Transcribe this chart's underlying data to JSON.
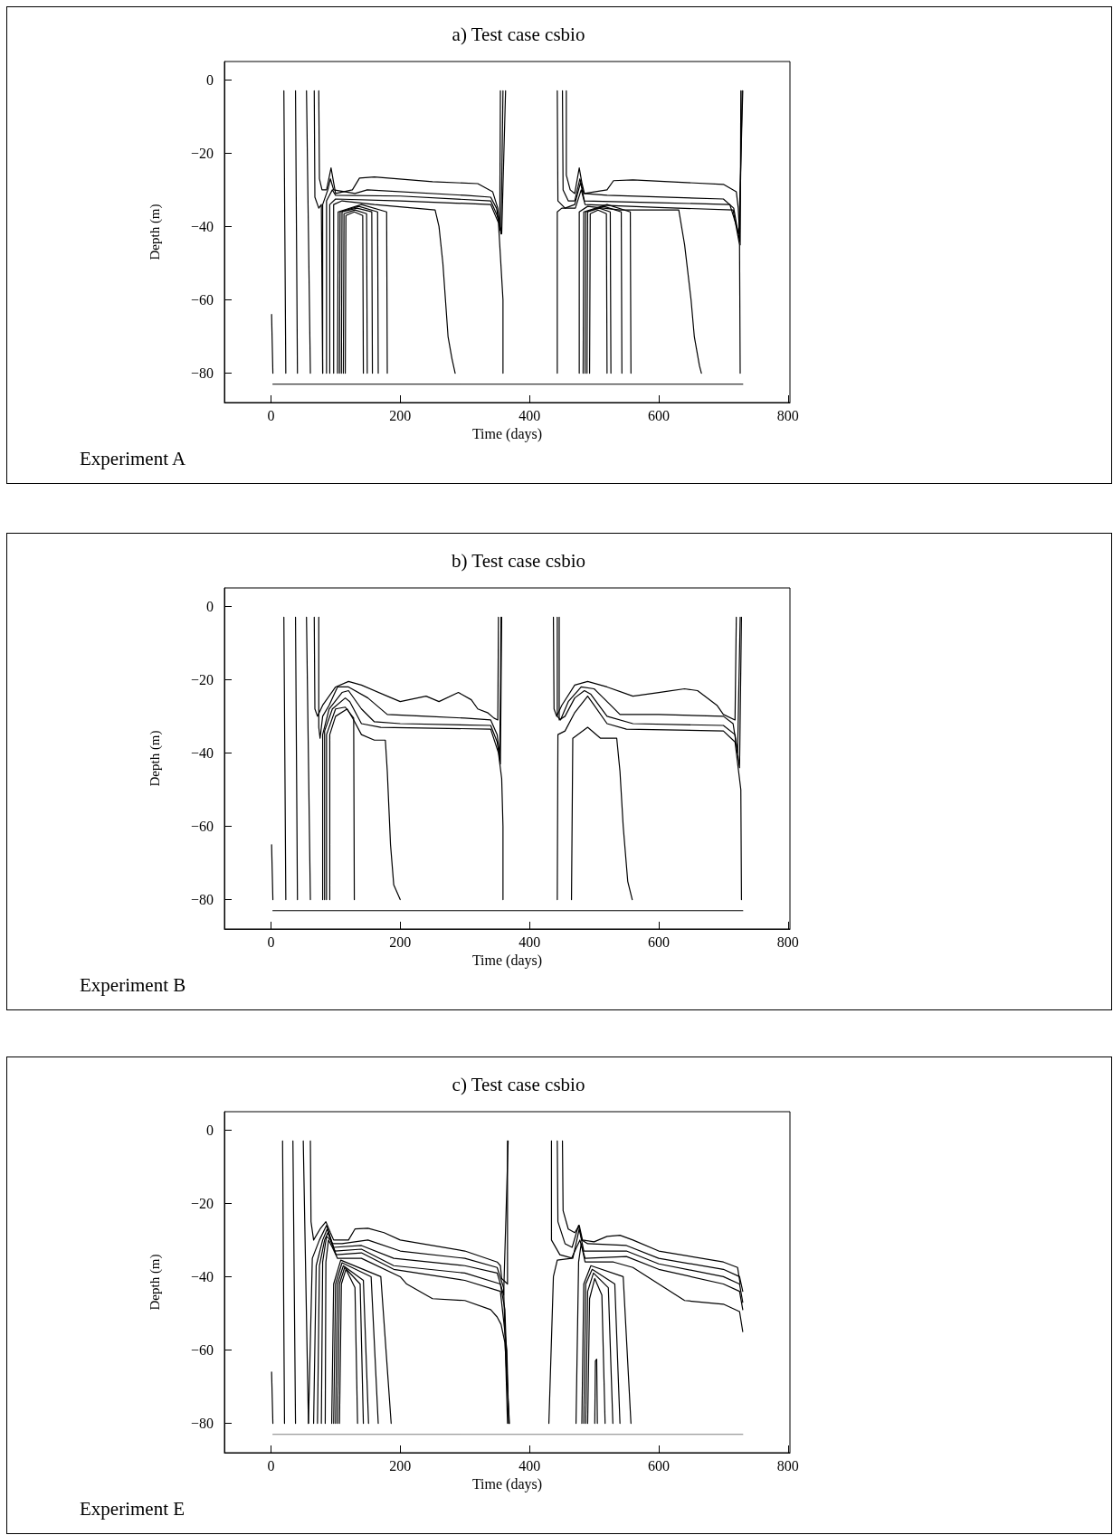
{
  "chart_data": [
    {
      "type": "line",
      "title": "a) Test case csbio",
      "xlabel": "Time (days)",
      "ylabel": "Depth (m)",
      "annotations": [
        "Experiment A"
      ],
      "xlim": [
        -72,
        803
      ],
      "ylim": [
        -88,
        5
      ],
      "xticks": [
        0,
        200,
        400,
        600,
        800
      ],
      "yticks": [
        0,
        -20,
        -40,
        -60,
        -80
      ],
      "grid": false,
      "marker": "none",
      "line_style": "solid",
      "series": [
        {
          "color": "#000000",
          "x": [
            1,
            3
          ],
          "values": [
            -64,
            -80
          ]
        },
        {
          "color": "#000000",
          "x": [
            20,
            23
          ],
          "values": [
            -3,
            -80
          ]
        },
        {
          "color": "#000000",
          "x": [
            38,
            41
          ],
          "values": [
            -3,
            -80
          ]
        },
        {
          "color": "#000000",
          "x": [
            55,
            61
          ],
          "values": [
            -3,
            -80
          ]
        },
        {
          "color": "#000000",
          "x": [
            67,
            68,
            74,
            78,
            80
          ],
          "values": [
            -3,
            -32,
            -35,
            -34,
            -80
          ]
        },
        {
          "color": "#000000",
          "x": [
            74,
            75,
            79,
            86,
            93,
            97,
            100,
            126,
            137,
            160,
            250,
            320,
            343,
            351,
            354,
            355
          ],
          "values": [
            -3,
            -27,
            -30,
            -30,
            -24,
            -28,
            -31,
            -30,
            -26.8,
            -26.5,
            -27.8,
            -28.3,
            -30.5,
            -35,
            -41,
            -3
          ]
        },
        {
          "color": "#000000",
          "x": [
            80,
            80,
            88,
            92,
            97,
            130,
            149,
            300,
            340,
            349,
            356,
            359
          ],
          "values": [
            -80,
            -34,
            -30,
            -27,
            -30,
            -31,
            -30,
            -31.5,
            -32,
            -35,
            -42,
            -3
          ]
        },
        {
          "color": "#000000",
          "x": [
            86,
            86,
            95,
            100,
            200,
            340,
            350,
            357,
            363
          ],
          "values": [
            -80,
            -33,
            -30,
            -31.5,
            -31.7,
            -33,
            -37,
            -42,
            -3
          ]
        },
        {
          "color": "#000000",
          "x": [
            91,
            91,
            100,
            200,
            340,
            352,
            359,
            359
          ],
          "values": [
            -80,
            -34,
            -32.5,
            -33,
            -34,
            -39,
            -60,
            -80
          ]
        },
        {
          "color": "#000000",
          "x": [
            97,
            97,
            110,
            160,
            254,
            260,
            266,
            270,
            274,
            280,
            285
          ],
          "values": [
            -80,
            -34,
            -33,
            -34,
            -35.5,
            -40,
            -50,
            -60,
            -70,
            -76,
            -80
          ]
        },
        {
          "color": "#000000",
          "x": [
            103,
            104,
            140,
            179,
            180
          ],
          "values": [
            -80,
            -36,
            -34,
            -36,
            -80
          ]
        },
        {
          "color": "#000000",
          "x": [
            106,
            107,
            136,
            165,
            166
          ],
          "values": [
            -80,
            -36,
            -34.5,
            -36,
            -80
          ]
        },
        {
          "color": "#000000",
          "x": [
            109,
            110,
            133,
            156,
            157
          ],
          "values": [
            -80,
            -36,
            -35,
            -36,
            -80
          ]
        },
        {
          "color": "#000000",
          "x": [
            112,
            113,
            130,
            148,
            149
          ],
          "values": [
            -80,
            -36.5,
            -35.5,
            -36.5,
            -80
          ]
        },
        {
          "color": "#000000",
          "x": [
            115,
            116,
            129,
            142,
            143
          ],
          "values": [
            -80,
            -37,
            -36,
            -37,
            -80
          ]
        },
        {
          "color": "#000000",
          "x": [
            457,
            457,
            463,
            470,
            477,
            481,
            485,
            520,
            530,
            560,
            700,
            720,
            723,
            726,
            727
          ],
          "values": [
            -3,
            -26,
            -30,
            -31,
            -24,
            -28,
            -31,
            -30,
            -27.5,
            -27.3,
            -28.5,
            -30.5,
            -35,
            -45,
            -3
          ]
        },
        {
          "color": "#000000",
          "x": [
            451,
            452,
            460,
            470,
            478,
            484,
            520,
            700,
            716,
            725,
            729
          ],
          "values": [
            -3,
            -30,
            -33,
            -33,
            -27,
            -31,
            -31.5,
            -32.5,
            -35,
            -44,
            -3
          ]
        },
        {
          "color": "#000000",
          "x": [
            443,
            444,
            455,
            470,
            479,
            485,
            600,
            710,
            724,
            730
          ],
          "values": [
            -3,
            -33,
            -35,
            -34,
            -28,
            -33,
            -33.5,
            -34,
            -42,
            -3
          ]
        },
        {
          "color": "#000000",
          "x": [
            443,
            443,
            450,
            471,
            480,
            486,
            600,
            715,
            725,
            726
          ],
          "values": [
            -80,
            -36,
            -35,
            -35,
            -30,
            -34,
            -34.8,
            -35.5,
            -45,
            -80
          ]
        },
        {
          "color": "#000000",
          "x": [
            477,
            477,
            490,
            540,
            631,
            640,
            650,
            655,
            663,
            666
          ],
          "values": [
            -80,
            -36,
            -34.5,
            -35.5,
            -35.5,
            -45,
            -60,
            -70,
            -78,
            -80
          ]
        },
        {
          "color": "#000000",
          "x": [
            483,
            484,
            520,
            556,
            557
          ],
          "values": [
            -80,
            -36,
            -34,
            -36,
            -80
          ]
        },
        {
          "color": "#000000",
          "x": [
            486,
            487,
            515,
            542,
            543
          ],
          "values": [
            -80,
            -36,
            -34.5,
            -36,
            -80
          ]
        },
        {
          "color": "#000000",
          "x": [
            489,
            490,
            508,
            525,
            526
          ],
          "values": [
            -80,
            -36,
            -35,
            -36,
            -80
          ]
        },
        {
          "color": "#000000",
          "x": [
            493,
            494,
            506,
            519,
            520
          ],
          "values": [
            -80,
            -36.5,
            -35.5,
            -36.5,
            -80
          ]
        },
        {
          "color": "#000000",
          "x": [
            3,
            730
          ],
          "values": [
            -83,
            -83
          ]
        }
      ]
    },
    {
      "type": "line",
      "title": "b) Test case csbio",
      "xlabel": "Time (days)",
      "ylabel": "Depth (m)",
      "annotations": [
        "Experiment B"
      ],
      "xlim": [
        -72,
        803
      ],
      "ylim": [
        -88,
        5
      ],
      "xticks": [
        0,
        200,
        400,
        600,
        800
      ],
      "yticks": [
        0,
        -20,
        -40,
        -60,
        -80
      ],
      "grid": false,
      "marker": "none",
      "line_style": "solid",
      "series": [
        {
          "color": "#000000",
          "x": [
            1,
            3
          ],
          "values": [
            -65,
            -80
          ]
        },
        {
          "color": "#000000",
          "x": [
            20,
            23
          ],
          "values": [
            -3,
            -80
          ]
        },
        {
          "color": "#000000",
          "x": [
            38,
            41
          ],
          "values": [
            -3,
            -80
          ]
        },
        {
          "color": "#000000",
          "x": [
            55,
            61
          ],
          "values": [
            -3,
            -80
          ]
        },
        {
          "color": "#000000",
          "x": [
            67,
            68,
            72,
            80,
            100,
            120,
            140,
            180,
            200,
            240,
            260,
            290,
            310,
            320,
            335,
            345,
            351,
            352
          ],
          "values": [
            -3,
            -28,
            -30,
            -27,
            -22,
            -20.5,
            -21.5,
            -24.5,
            -26,
            -24.5,
            -26,
            -23.5,
            -25.5,
            -28,
            -29,
            -30.5,
            -31,
            -3
          ]
        },
        {
          "color": "#000000",
          "x": [
            74,
            74,
            76,
            80,
            90,
            103,
            120,
            150,
            180,
            240,
            300,
            340,
            350,
            354,
            356
          ],
          "values": [
            -3,
            -33,
            -36,
            -30,
            -27,
            -22,
            -22,
            -25,
            -29.5,
            -30,
            -30.5,
            -31,
            -35,
            -41,
            -3
          ]
        },
        {
          "color": "#000000",
          "x": [
            80,
            80,
            90,
            110,
            120,
            140,
            160,
            200,
            340,
            350,
            355,
            357
          ],
          "values": [
            -80,
            -35,
            -28,
            -23.5,
            -23,
            -28,
            -31.5,
            -32,
            -32.5,
            -37,
            -43,
            -3
          ]
        },
        {
          "color": "#000000",
          "x": [
            83,
            83,
            95,
            115,
            122,
            140,
            170,
            340,
            352,
            357,
            359,
            359
          ],
          "values": [
            -80,
            -34,
            -28,
            -25,
            -26,
            -32,
            -33,
            -33.5,
            -40,
            -47,
            -60,
            -80
          ]
        },
        {
          "color": "#000000",
          "x": [
            86,
            86,
            100,
            115,
            128,
            129
          ],
          "values": [
            -80,
            -35,
            -28,
            -27.5,
            -30.5,
            -80
          ]
        },
        {
          "color": "#000000",
          "x": [
            91,
            91,
            100,
            118,
            128,
            140,
            160,
            177,
            180,
            185,
            190,
            200
          ],
          "values": [
            -80,
            -35,
            -30,
            -28,
            -31,
            -35,
            -36.5,
            -36.5,
            -45,
            -65,
            -76,
            -80
          ]
        },
        {
          "color": "#000000",
          "x": [
            437,
            438,
            442,
            450,
            470,
            490,
            520,
            560,
            600,
            640,
            660,
            690,
            700,
            718,
            720
          ],
          "values": [
            -3,
            -28,
            -30,
            -27,
            -21.5,
            -20.5,
            -22,
            -24.5,
            -23.5,
            -22.5,
            -23,
            -27,
            -29.5,
            -31,
            -3
          ]
        },
        {
          "color": "#000000",
          "x": [
            443,
            443,
            448,
            460,
            480,
            500,
            520,
            540,
            600,
            700,
            715,
            722,
            726
          ],
          "values": [
            -3,
            -30,
            -31,
            -26,
            -22,
            -22.5,
            -26,
            -29.5,
            -29.5,
            -30,
            -32,
            -40,
            -3
          ]
        },
        {
          "color": "#000000",
          "x": [
            446,
            446,
            455,
            470,
            485,
            495,
            520,
            560,
            700,
            718,
            725,
            728
          ],
          "values": [
            -3,
            -31,
            -30,
            -25,
            -23,
            -24,
            -30,
            -32,
            -32.5,
            -35,
            -44,
            -3
          ]
        },
        {
          "color": "#000000",
          "x": [
            443,
            444,
            455,
            470,
            490,
            500,
            520,
            550,
            700,
            718,
            727,
            728
          ],
          "values": [
            -80,
            -35,
            -34,
            -29,
            -24.5,
            -27,
            -32,
            -33.5,
            -34,
            -37,
            -50,
            -80
          ]
        },
        {
          "color": "#000000",
          "x": [
            465,
            467,
            490,
            510,
            535,
            540,
            545,
            552,
            559
          ],
          "values": [
            -80,
            -36,
            -33,
            -36,
            -36,
            -45,
            -60,
            -75,
            -80
          ]
        },
        {
          "color": "#000000",
          "x": [
            3,
            730
          ],
          "values": [
            -83,
            -83
          ]
        }
      ]
    },
    {
      "type": "line",
      "title": "c) Test case csbio",
      "xlabel": "Time (days)",
      "ylabel": "Depth (m)",
      "annotations": [
        "Experiment E"
      ],
      "xlim": [
        -72,
        803
      ],
      "ylim": [
        -88,
        5
      ],
      "xticks": [
        0,
        200,
        400,
        600,
        800
      ],
      "yticks": [
        0,
        -20,
        -40,
        -60,
        -80
      ],
      "grid": false,
      "marker": "none",
      "line_style": "solid",
      "series": [
        {
          "color": "#000000",
          "x": [
            1,
            3
          ],
          "values": [
            -66,
            -80
          ]
        },
        {
          "color": "#000000",
          "x": [
            18,
            21
          ],
          "values": [
            -3,
            -80
          ]
        },
        {
          "color": "#000000",
          "x": [
            34,
            38
          ],
          "values": [
            -3,
            -80
          ]
        },
        {
          "color": "#000000",
          "x": [
            50,
            58
          ],
          "values": [
            -3,
            -80
          ]
        },
        {
          "color": "#000000",
          "x": [
            61,
            62,
            66,
            76,
            85,
            92,
            97,
            120,
            130,
            150,
            175,
            200,
            300,
            350,
            355,
            357,
            366,
            366
          ],
          "values": [
            -3,
            -25,
            -30,
            -27,
            -25,
            -28,
            -30,
            -30,
            -27,
            -26.8,
            -28,
            -30,
            -33,
            -36,
            -37,
            -40.5,
            -42,
            -3
          ]
        },
        {
          "color": "#000000",
          "x": [
            58,
            64,
            75,
            86,
            95,
            110,
            150,
            200,
            300,
            350,
            360,
            366
          ],
          "values": [
            -80,
            -35,
            -30,
            -26,
            -31,
            -31,
            -30,
            -33,
            -35,
            -37.5,
            -43,
            -80
          ]
        },
        {
          "color": "#000000",
          "x": [
            66,
            70,
            80,
            87,
            97,
            140,
            190,
            300,
            350,
            360,
            367
          ],
          "values": [
            -80,
            -37,
            -30,
            -27,
            -32,
            -31.5,
            -35,
            -37,
            -39,
            -45,
            -3
          ]
        },
        {
          "color": "#000000",
          "x": [
            72,
            75,
            83,
            88,
            99,
            140,
            190,
            300,
            355,
            362,
            368
          ],
          "values": [
            -80,
            -37,
            -30,
            -28,
            -33,
            -32.5,
            -37,
            -39,
            -42,
            -49,
            -80
          ]
        },
        {
          "color": "#000000",
          "x": [
            78,
            80,
            86,
            92,
            101,
            140,
            190,
            300,
            355,
            365,
            368
          ],
          "values": [
            -80,
            -36,
            -29,
            -30,
            -34,
            -33.5,
            -38,
            -41,
            -44,
            -60,
            -80
          ]
        },
        {
          "color": "#000000",
          "x": [
            84,
            85,
            89,
            95,
            103,
            140,
            200,
            210,
            250,
            300,
            340,
            350,
            356,
            362,
            369
          ],
          "values": [
            -80,
            -36,
            -30,
            -32,
            -35,
            -35,
            -40,
            -42,
            -46,
            -46.5,
            -49,
            -51,
            -53,
            -58,
            -80
          ]
        },
        {
          "color": "#000000",
          "x": [
            94,
            97,
            108,
            170,
            186
          ],
          "values": [
            -80,
            -42,
            -35.5,
            -40,
            -80
          ]
        },
        {
          "color": "#000000",
          "x": [
            97,
            100,
            110,
            155,
            166
          ],
          "values": [
            -80,
            -42,
            -36.2,
            -40,
            -80
          ]
        },
        {
          "color": "#000000",
          "x": [
            100,
            103,
            112,
            143,
            151
          ],
          "values": [
            -80,
            -42,
            -37,
            -41,
            -80
          ]
        },
        {
          "color": "#000000",
          "x": [
            103,
            106,
            114,
            138,
            143
          ],
          "values": [
            -80,
            -42,
            -37.5,
            -42,
            -80
          ]
        },
        {
          "color": "#000000",
          "x": [
            106,
            109,
            116,
            130,
            134
          ],
          "values": [
            -80,
            -42,
            -38,
            -43,
            -80
          ]
        },
        {
          "color": "#000000",
          "x": [
            451,
            452,
            460,
            470,
            477,
            482,
            500,
            520,
            540,
            560,
            600,
            700,
            722,
            726
          ],
          "values": [
            -3,
            -22,
            -27,
            -28,
            -26,
            -30,
            -30.5,
            -29,
            -28.7,
            -30,
            -33,
            -36,
            -37.5,
            -42
          ]
        },
        {
          "color": "#000000",
          "x": [
            443,
            444,
            455,
            466,
            476,
            481,
            490,
            550,
            600,
            700,
            725,
            730
          ],
          "values": [
            -3,
            -25,
            -31,
            -32,
            -26,
            -30,
            -31,
            -31.5,
            -35,
            -38,
            -40,
            -44
          ]
        },
        {
          "color": "#000000",
          "x": [
            434,
            434,
            447,
            467,
            477,
            484,
            550,
            600,
            700,
            725,
            730
          ],
          "values": [
            -3,
            -30,
            -34,
            -35,
            -27,
            -33,
            -33,
            -36.5,
            -40,
            -42,
            -47
          ]
        },
        {
          "color": "#000000",
          "x": [
            430,
            437,
            443,
            465,
            478,
            486,
            550,
            600,
            700,
            725,
            730
          ],
          "values": [
            -80,
            -40,
            -35.5,
            -35,
            -30,
            -35,
            -34.5,
            -38,
            -42,
            -44,
            -49
          ]
        },
        {
          "color": "#000000",
          "x": [
            472,
            476,
            480,
            486,
            530,
            560,
            600,
            640,
            700,
            725,
            730
          ],
          "values": [
            -80,
            -36,
            -31,
            -36,
            -36,
            -37.5,
            -42,
            -46.5,
            -47.5,
            -49.5,
            -55
          ]
        },
        {
          "color": "#000000",
          "x": [
            481,
            484,
            495,
            545,
            557
          ],
          "values": [
            -80,
            -42,
            -37,
            -40,
            -80
          ]
        },
        {
          "color": "#000000",
          "x": [
            484,
            487,
            497,
            532,
            540
          ],
          "values": [
            -80,
            -42,
            -38,
            -42,
            -80
          ]
        },
        {
          "color": "#000000",
          "x": [
            487,
            490,
            499,
            522,
            529
          ],
          "values": [
            -80,
            -44,
            -39,
            -43,
            -80
          ]
        },
        {
          "color": "#000000",
          "x": [
            490,
            493,
            501,
            512,
            517
          ],
          "values": [
            -80,
            -46,
            -40.5,
            -45,
            -80
          ]
        },
        {
          "color": "#000000",
          "x": [
            501,
            502,
            504,
            505
          ],
          "values": [
            -80,
            -63,
            -62.5,
            -80
          ]
        },
        {
          "color": "#808080",
          "x": [
            3,
            730
          ],
          "values": [
            -83,
            -83
          ]
        }
      ]
    }
  ]
}
